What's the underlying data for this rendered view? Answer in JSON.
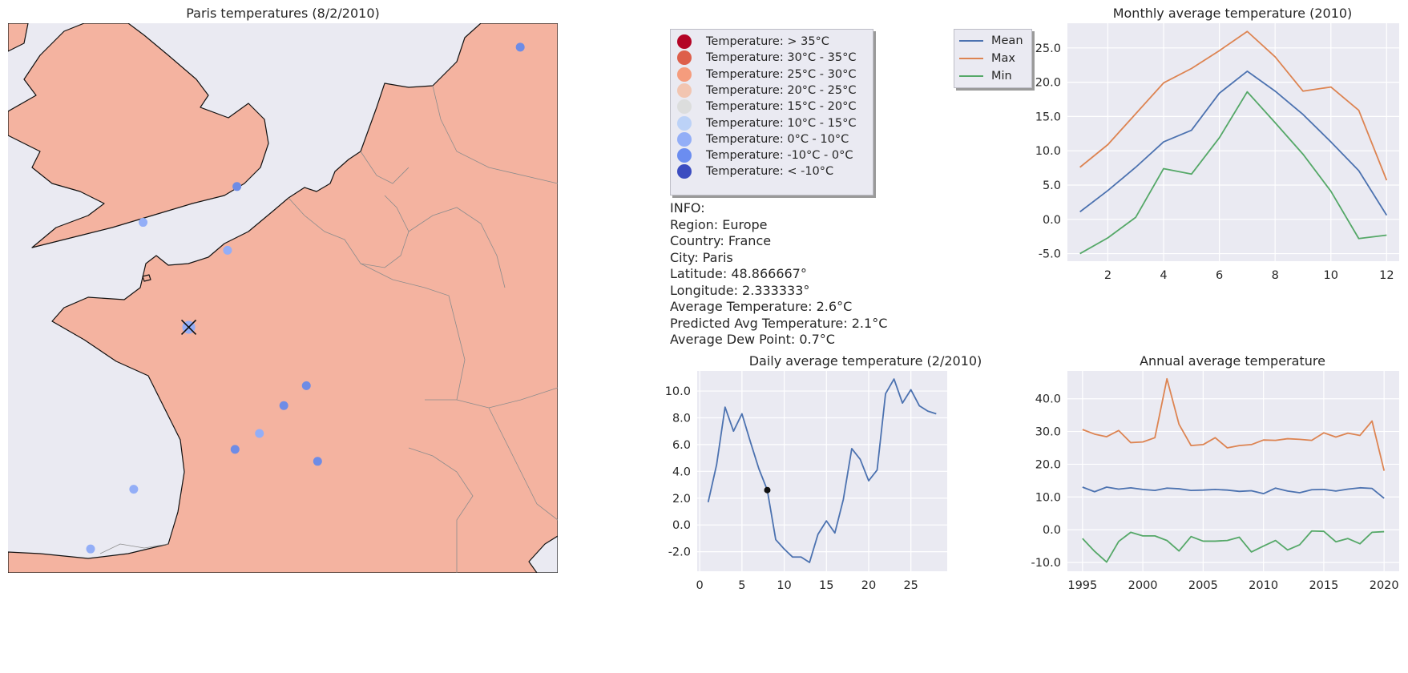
{
  "map": {
    "title": "Paris temperatures (8/2/2010)",
    "colors": {
      "sea": "#eaeaf2",
      "land": "#f4b3a0",
      "coast": "#111111",
      "border": "#8c8c8c"
    },
    "cities": [
      {
        "lon": 20.0,
        "lat": 55.9,
        "color": "#6e8ce6"
      },
      {
        "lon": 4.9,
        "lat": 52.4,
        "color": "#6e8ce6"
      },
      {
        "lon": -0.1,
        "lat": 51.5,
        "color": "#93aef7"
      },
      {
        "lon": 4.4,
        "lat": 50.8,
        "color": "#93aef7"
      },
      {
        "lon": 4.8,
        "lat": 45.8,
        "color": "#6e8ce6"
      },
      {
        "lon": 7.4,
        "lat": 46.9,
        "color": "#6e8ce6"
      },
      {
        "lon": 8.6,
        "lat": 47.4,
        "color": "#6e8ce6"
      },
      {
        "lon": 6.1,
        "lat": 46.2,
        "color": "#93aef7"
      },
      {
        "lon": 9.2,
        "lat": 45.5,
        "color": "#6e8ce6"
      },
      {
        "lon": -0.6,
        "lat": 44.8,
        "color": "#93aef7"
      },
      {
        "lon": -2.9,
        "lat": 43.3,
        "color": "#93aef7"
      }
    ],
    "selected": {
      "lon": 2.3333,
      "lat": 48.8667,
      "color": "#93aef7"
    }
  },
  "legend": {
    "items": [
      {
        "label": "Temperature:  > 35°C",
        "color": "#b40426"
      },
      {
        "label": "Temperature: 30°C - 35°C",
        "color": "#dd5f4b"
      },
      {
        "label": "Temperature: 25°C - 30°C",
        "color": "#f59c7d"
      },
      {
        "label": "Temperature: 20°C - 25°C",
        "color": "#f2c5b1"
      },
      {
        "label": "Temperature: 15°C - 20°C",
        "color": "#dcdddd"
      },
      {
        "label": "Temperature: 10°C - 15°C",
        "color": "#bcd2f7"
      },
      {
        "label": "Temperature: 0°C - 10°C",
        "color": "#93aef7"
      },
      {
        "label": "Temperature: -10°C - 0°C",
        "color": "#6b8df0"
      },
      {
        "label": "Temperature: < -10°C",
        "color": "#3b4cc0"
      }
    ]
  },
  "series_legend": [
    {
      "label": "Mean",
      "color": "#4c72b0"
    },
    {
      "label": "Max",
      "color": "#dd8452"
    },
    {
      "label": "Min",
      "color": "#55a868"
    }
  ],
  "info": [
    "INFO:",
    "Region: Europe",
    "Country: France",
    "City: Paris",
    "Latitude: 48.866667°",
    "Longitude: 2.333333°",
    "Average Temperature: 2.6°C",
    "Predicted Avg Temperature: 2.1°C",
    "Average Dew Point: 0.7°C"
  ],
  "chart_data": [
    {
      "type": "line",
      "title": "Monthly average temperature (2010)",
      "xlabel": "",
      "ylabel": "",
      "x": [
        1,
        2,
        3,
        4,
        5,
        6,
        7,
        8,
        9,
        10,
        11,
        12
      ],
      "xlim": [
        0.55,
        12.45
      ],
      "ylim": [
        -6.1,
        28.6
      ],
      "xticks": [
        2,
        4,
        6,
        8,
        10,
        12
      ],
      "yticks": [
        -5,
        0,
        5,
        10,
        15,
        20,
        25
      ],
      "series": [
        {
          "color": "#4c72b0",
          "values": [
            1.1,
            4.2,
            7.6,
            11.3,
            13.0,
            18.4,
            21.6,
            18.7,
            15.3,
            11.3,
            7.1,
            0.6
          ]
        },
        {
          "color": "#dd8452",
          "values": [
            7.6,
            10.9,
            15.4,
            19.9,
            22.0,
            24.6,
            27.4,
            23.7,
            18.7,
            19.3,
            15.9,
            5.7
          ]
        },
        {
          "color": "#55a868",
          "values": [
            -5.0,
            -2.7,
            0.3,
            7.4,
            6.6,
            11.9,
            18.6,
            14.1,
            9.5,
            4.1,
            -2.8,
            -2.3
          ]
        }
      ]
    },
    {
      "type": "line",
      "title": "Daily average temperature (2/2010)",
      "xlabel": "",
      "ylabel": "",
      "x": [
        1,
        2,
        3,
        4,
        5,
        6,
        7,
        8,
        9,
        10,
        11,
        12,
        13,
        14,
        15,
        16,
        17,
        18,
        19,
        20,
        21,
        22,
        23,
        24,
        25,
        26,
        27,
        28
      ],
      "xlim": [
        -0.3,
        29.3
      ],
      "ylim": [
        -3.46,
        11.5
      ],
      "xticks": [
        0,
        5,
        10,
        15,
        20,
        25
      ],
      "yticks": [
        -2,
        0,
        2,
        4,
        6,
        8,
        10
      ],
      "series": [
        {
          "color": "#4c72b0",
          "values": [
            1.7,
            4.5,
            8.8,
            7.0,
            8.3,
            6.2,
            4.2,
            2.6,
            -1.1,
            -1.8,
            -2.4,
            -2.4,
            -2.8,
            -0.7,
            0.3,
            -0.6,
            1.9,
            5.7,
            4.9,
            3.3,
            4.1,
            9.8,
            10.9,
            9.1,
            10.1,
            8.9,
            8.5,
            8.3
          ]
        }
      ],
      "highlight": {
        "x": 8,
        "y": 2.6,
        "color": "#111111"
      }
    },
    {
      "type": "line",
      "title": "Annual average temperature",
      "xlabel": "",
      "ylabel": "",
      "x": [
        1995,
        1996,
        1997,
        1998,
        1999,
        2000,
        2001,
        2002,
        2003,
        2004,
        2005,
        2006,
        2007,
        2008,
        2009,
        2010,
        2011,
        2012,
        2013,
        2014,
        2015,
        2016,
        2017,
        2018,
        2019,
        2020
      ],
      "xlim": [
        1993.75,
        2021.25
      ],
      "ylim": [
        -12.7,
        48.5
      ],
      "xticks": [
        1995,
        2000,
        2005,
        2010,
        2015,
        2020
      ],
      "yticks": [
        -10,
        0,
        10,
        20,
        30,
        40
      ],
      "series": [
        {
          "color": "#4c72b0",
          "values": [
            13.0,
            11.6,
            13.0,
            12.4,
            12.8,
            12.3,
            12.0,
            12.7,
            12.5,
            12.0,
            12.1,
            12.3,
            12.1,
            11.7,
            11.9,
            11.0,
            12.7,
            11.8,
            11.3,
            12.2,
            12.3,
            11.8,
            12.4,
            12.8,
            12.6,
            9.6
          ]
        },
        {
          "color": "#dd8452",
          "values": [
            30.6,
            29.2,
            28.4,
            30.3,
            26.6,
            26.8,
            28.1,
            46.1,
            32.2,
            25.7,
            26.0,
            28.1,
            25.0,
            25.7,
            26.0,
            27.4,
            27.3,
            27.8,
            27.6,
            27.3,
            29.6,
            28.3,
            29.5,
            28.8,
            33.2,
            18.0
          ]
        },
        {
          "color": "#55a868",
          "values": [
            -2.7,
            -6.6,
            -9.9,
            -3.6,
            -0.8,
            -1.9,
            -1.9,
            -3.3,
            -6.5,
            -2.1,
            -3.5,
            -3.5,
            -3.3,
            -2.3,
            -6.8,
            -5.0,
            -3.3,
            -6.2,
            -4.6,
            -0.4,
            -0.5,
            -3.7,
            -2.7,
            -4.3,
            -0.8,
            -0.6
          ]
        }
      ]
    }
  ]
}
